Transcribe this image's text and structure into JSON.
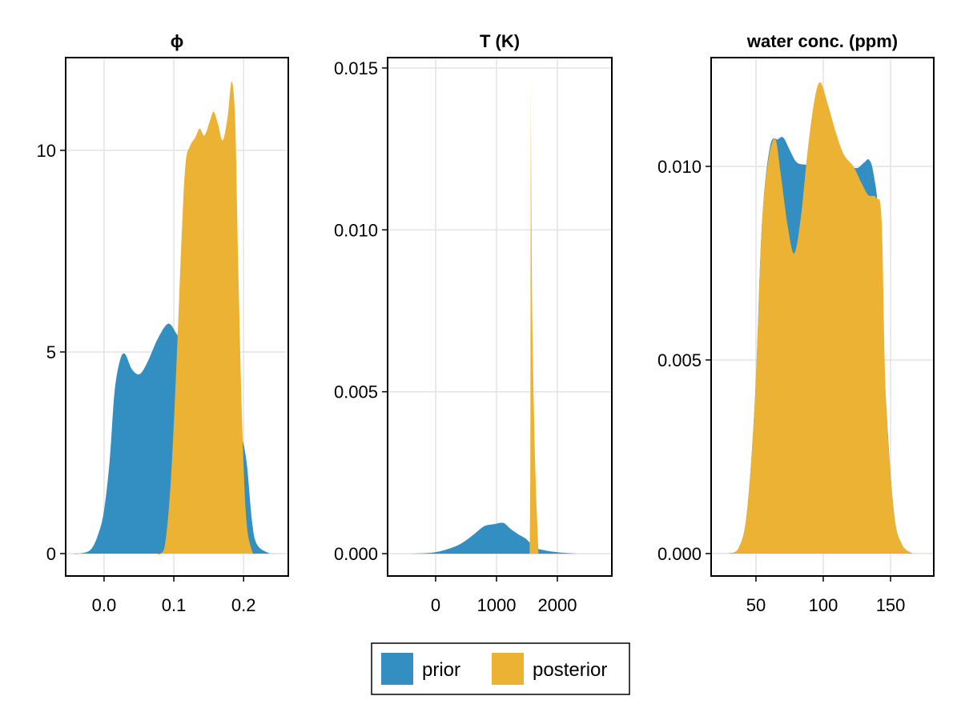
{
  "colors": {
    "prior": "#338ec1",
    "posterior": "#ebb233"
  },
  "legend": {
    "items": [
      {
        "label": "prior",
        "series": "prior"
      },
      {
        "label": "posterior",
        "series": "posterior"
      }
    ]
  },
  "chart_data": [
    {
      "type": "area",
      "title": "ϕ",
      "xlim": [
        -0.055,
        0.264
      ],
      "ylim": [
        -0.556,
        12.3
      ],
      "xticks": [
        0.0,
        0.1,
        0.2
      ],
      "xtick_labels": [
        "0.0",
        "0.1",
        "0.2"
      ],
      "yticks": [
        0,
        5,
        10
      ],
      "ytick_labels": [
        "0",
        "5",
        "10"
      ],
      "grid": true,
      "series": [
        {
          "name": "prior",
          "x": [
            -0.045,
            -0.035,
            -0.019,
            -0.008,
            0.0,
            0.008,
            0.015,
            0.023,
            0.03,
            0.04,
            0.051,
            0.062,
            0.077,
            0.092,
            0.104,
            0.12,
            0.15,
            0.18,
            0.195,
            0.204,
            0.212,
            0.219,
            0.235,
            0.246
          ],
          "y": [
            0,
            0,
            0.1,
            0.5,
            1.07,
            2.3,
            4.0,
            4.8,
            4.95,
            4.57,
            4.45,
            4.74,
            5.33,
            5.7,
            5.45,
            5.0,
            4.2,
            3.5,
            3.0,
            2.3,
            0.8,
            0.23,
            0.02,
            0
          ]
        },
        {
          "name": "posterior",
          "x": [
            0.075,
            0.081,
            0.088,
            0.096,
            0.104,
            0.112,
            0.117,
            0.123,
            0.131,
            0.137,
            0.144,
            0.152,
            0.157,
            0.163,
            0.17,
            0.177,
            0.183,
            0.188,
            0.192,
            0.198,
            0.204,
            0.212,
            0.217
          ],
          "y": [
            0,
            0,
            0.3,
            1.9,
            4.8,
            8.2,
            9.7,
            10.1,
            10.33,
            10.54,
            10.37,
            10.75,
            10.96,
            10.67,
            10.25,
            10.83,
            11.71,
            10.67,
            7.33,
            3.16,
            0.82,
            0.07,
            0
          ]
        }
      ]
    },
    {
      "type": "area",
      "title": "T (K)",
      "xlim": [
        -789,
        2895
      ],
      "ylim": [
        -0.00069,
        0.01532
      ],
      "xticks": [
        0,
        1000,
        2000
      ],
      "xtick_labels": [
        "0",
        "1000",
        "2000"
      ],
      "yticks": [
        0,
        0.005,
        0.01,
        0.015
      ],
      "ytick_labels": [
        "0.000",
        "0.005",
        "0.010",
        "0.015"
      ],
      "grid": true,
      "series": [
        {
          "name": "prior",
          "x": [
            -422,
            -22,
            289,
            467,
            644,
            800,
            956,
            1111,
            1222,
            1356,
            1489,
            1622,
            1800,
            2022,
            2333
          ],
          "y": [
            0,
            4e-05,
            0.0002,
            0.00037,
            0.00062,
            0.00085,
            0.00091,
            0.00095,
            0.00078,
            0.0006,
            0.00045,
            0.0002,
            0.0001,
            4e-05,
            0
          ]
        },
        {
          "name": "posterior",
          "x": [
            1545,
            1555,
            1560,
            1565,
            1568,
            1590,
            1640,
            1680,
            1690
          ],
          "y": [
            0,
            0.0025,
            0.008,
            0.0146,
            0.0127,
            0.007,
            0.0025,
            0.0005,
            0
          ]
        }
      ]
    },
    {
      "type": "area",
      "title": "water conc. (ppm)",
      "xlim": [
        16.7,
        182.1
      ],
      "ylim": [
        -0.00058,
        0.01281
      ],
      "xticks": [
        50,
        100,
        150
      ],
      "xtick_labels": [
        "50",
        "100",
        "150"
      ],
      "yticks": [
        0,
        0.005,
        0.01
      ],
      "ytick_labels": [
        "0.000",
        "0.005",
        "0.010"
      ],
      "grid": true,
      "series": [
        {
          "name": "prior",
          "x": [
            29.4,
            37.4,
            43.4,
            49.4,
            54.4,
            60.4,
            66.4,
            70.4,
            75.4,
            80.4,
            87.4,
            95,
            105,
            113,
            120.4,
            125.4,
            130.4,
            134,
            137.4,
            141.4,
            146.4,
            152.4,
            158.4,
            166.4
          ],
          "y": [
            0,
            0.00016,
            0.0011,
            0.0041,
            0.0085,
            0.0105,
            0.0107,
            0.01074,
            0.0104,
            0.0101,
            0.01004,
            0.01,
            0.0101,
            0.0101,
            0.01,
            0.00996,
            0.0101,
            0.01017,
            0.0098,
            0.0085,
            0.0041,
            0.0011,
            0.00024,
            0
          ]
        },
        {
          "name": "posterior",
          "x": [
            29.4,
            37.4,
            43.4,
            49.4,
            54.4,
            59.4,
            64.4,
            68.4,
            73.4,
            78.4,
            83.4,
            88.4,
            93.4,
            97.8,
            103.4,
            109.4,
            115.4,
            122.4,
            128.4,
            133.4,
            139.4,
            143.4,
            146.4,
            152.4,
            158.4,
            166.4
          ],
          "y": [
            0,
            0.00016,
            0.0011,
            0.0041,
            0.0085,
            0.0102,
            0.0107,
            0.0098,
            0.0085,
            0.00775,
            0.0087,
            0.0104,
            0.0117,
            0.01217,
            0.0116,
            0.01087,
            0.0103,
            0.01,
            0.00957,
            0.00926,
            0.00918,
            0.00857,
            0.0041,
            0.0011,
            0.00024,
            0
          ]
        }
      ]
    }
  ]
}
